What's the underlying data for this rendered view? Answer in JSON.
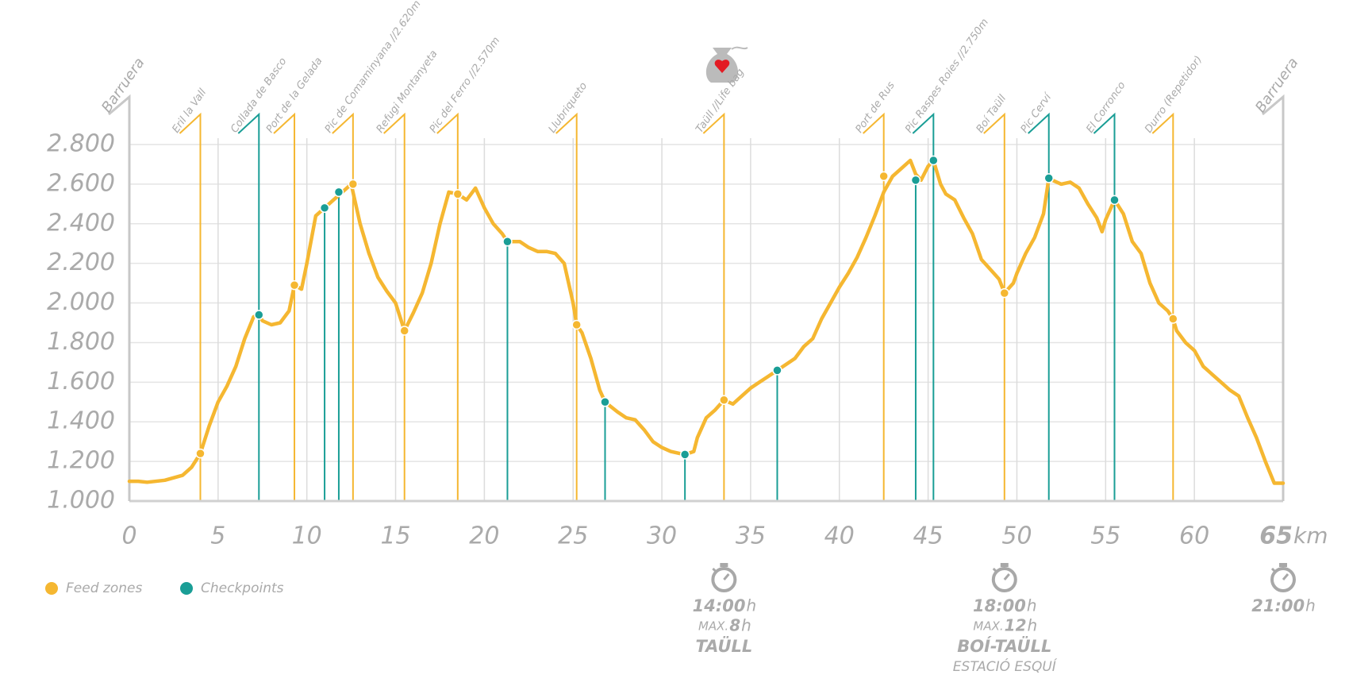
{
  "chart_data": {
    "type": "line",
    "xlim": [
      0,
      65
    ],
    "xticks": [
      0,
      5,
      10,
      15,
      20,
      25,
      30,
      35,
      40,
      45,
      50,
      55,
      60,
      65
    ],
    "x_unit": "km",
    "ylim": [
      1000,
      2800
    ],
    "yticks": [
      {
        "value": 1000,
        "label": "1.000"
      },
      {
        "value": 1200,
        "label": "1.200"
      },
      {
        "value": 1400,
        "label": "1.400"
      },
      {
        "value": 1600,
        "label": "1.600"
      },
      {
        "value": 1800,
        "label": "1.800"
      },
      {
        "value": 2000,
        "label": "2.000"
      },
      {
        "value": 2200,
        "label": "2.200"
      },
      {
        "value": 2400,
        "label": "2.400"
      },
      {
        "value": 2600,
        "label": "2.600"
      },
      {
        "value": 2800,
        "label": "2.800"
      }
    ],
    "grid": true,
    "start_label": "Barruera",
    "end_label": "Barruera",
    "profile": {
      "color": "#f5b731",
      "x": [
        0,
        0.5,
        1,
        2,
        3,
        3.5,
        4,
        4.5,
        5,
        5.5,
        6,
        6.5,
        7,
        7.3,
        7.5,
        8,
        8.5,
        9,
        9.3,
        9.7,
        10,
        10.5,
        11,
        11.5,
        12,
        12.5,
        13,
        13.5,
        14,
        14.5,
        15,
        15.5,
        16,
        16.5,
        17,
        17.5,
        18,
        18.5,
        19,
        19.5,
        20,
        20.5,
        21,
        21.3,
        22,
        22.5,
        23,
        23.5,
        24,
        24.5,
        25,
        25.2,
        25.5,
        26,
        26.5,
        26.8,
        27.5,
        28,
        28.5,
        29,
        29.5,
        30,
        30.5,
        31,
        31.3,
        31.8,
        32,
        32.5,
        33,
        33.5,
        34,
        34.5,
        35,
        35.5,
        36,
        36.5,
        37,
        37.5,
        38,
        38.5,
        39,
        39.5,
        40,
        40.5,
        41,
        41.5,
        42,
        42.5,
        43,
        43.5,
        44,
        44.3,
        44.6,
        45,
        45.3,
        45.7,
        46,
        46.5,
        47,
        47.5,
        48,
        48.5,
        49,
        49.3,
        49.8,
        50,
        50.5,
        51,
        51.5,
        51.8,
        52,
        52.5,
        53,
        53.5,
        54,
        54.5,
        54.8,
        55,
        55.5,
        56,
        56.5,
        57,
        57.5,
        58,
        58.5,
        58.8,
        59,
        59.5,
        60,
        60.5,
        61,
        61.5,
        62,
        62.5,
        63,
        63.5,
        64,
        64.5,
        65
      ],
      "values": [
        1100,
        1100,
        1095,
        1105,
        1130,
        1170,
        1240,
        1380,
        1500,
        1580,
        1680,
        1820,
        1930,
        1940,
        1910,
        1890,
        1900,
        1960,
        2090,
        2070,
        2200,
        2440,
        2480,
        2520,
        2560,
        2600,
        2400,
        2250,
        2130,
        2060,
        2000,
        1860,
        1950,
        2050,
        2200,
        2400,
        2560,
        2550,
        2520,
        2580,
        2480,
        2400,
        2350,
        2310,
        2310,
        2280,
        2260,
        2260,
        2250,
        2200,
        2000,
        1890,
        1850,
        1720,
        1560,
        1500,
        1450,
        1420,
        1410,
        1360,
        1300,
        1270,
        1250,
        1240,
        1235,
        1250,
        1320,
        1420,
        1460,
        1510,
        1490,
        1530,
        1570,
        1600,
        1630,
        1660,
        1690,
        1720,
        1780,
        1820,
        1920,
        2000,
        2080,
        2150,
        2230,
        2330,
        2440,
        2560,
        2640,
        2680,
        2720,
        2650,
        2620,
        2690,
        2720,
        2600,
        2550,
        2520,
        2430,
        2350,
        2220,
        2170,
        2120,
        2050,
        2100,
        2150,
        2250,
        2330,
        2450,
        2630,
        2620,
        2600,
        2610,
        2580,
        2500,
        2430,
        2360,
        2420,
        2520,
        2450,
        2310,
        2250,
        2100,
        2000,
        1960,
        1920,
        1860,
        1800,
        1760,
        1680,
        1640,
        1600,
        1560,
        1530,
        1420,
        1320,
        1200,
        1090,
        1090
      ]
    },
    "series": [
      {
        "name": "Feed zones",
        "color": "#f5b731",
        "x": [
          4,
          9.3,
          12.6,
          15.5,
          18.5,
          25.2,
          33.5,
          42.5,
          49.3,
          58.8
        ],
        "values": [
          1240,
          2090,
          2600,
          1860,
          2550,
          1890,
          1510,
          2640,
          2050,
          1920
        ],
        "labels": [
          "Eril la Vall",
          "Port de la Gelada",
          "Pic de Comaminyana //2.620m",
          "Refugi Montanyeta",
          "Pic del Ferro //2.570m",
          "Llubriqueto",
          "Taüll //Life bag",
          "Port de Rus",
          "Boí Taüll",
          "Durro (Repetidor)"
        ]
      },
      {
        "name": "Checkpoints",
        "color": "#1a9e96",
        "x": [
          7.3,
          11,
          11.8,
          21.3,
          26.8,
          31.3,
          36.5,
          44.3,
          45.3,
          51.8,
          55.5
        ],
        "values": [
          1940,
          2480,
          2560,
          2310,
          1500,
          1235,
          1660,
          2620,
          2720,
          2630,
          2520
        ],
        "labels": [
          "Collada de Basco",
          null,
          null,
          null,
          null,
          null,
          null,
          null,
          "Pic Raspes Roies //2.750m",
          "Pic Cerví",
          "El Corronco"
        ]
      }
    ],
    "cutoffs": [
      {
        "x": 33.5,
        "time": "14:00",
        "time_unit": "h",
        "max_prefix": "MAX.",
        "max_hours": 8,
        "max_unit": "h",
        "place": "TAÜLL"
      },
      {
        "x": 49.3,
        "time": "18:00",
        "time_unit": "h",
        "max_prefix": "MAX.",
        "max_hours": 12,
        "max_unit": "h",
        "place": "BOÍ-TAÜLL",
        "sub": "ESTACIÓ ESQUÍ"
      },
      {
        "x": 65,
        "time": "21:00",
        "time_unit": "h"
      }
    ]
  }
}
